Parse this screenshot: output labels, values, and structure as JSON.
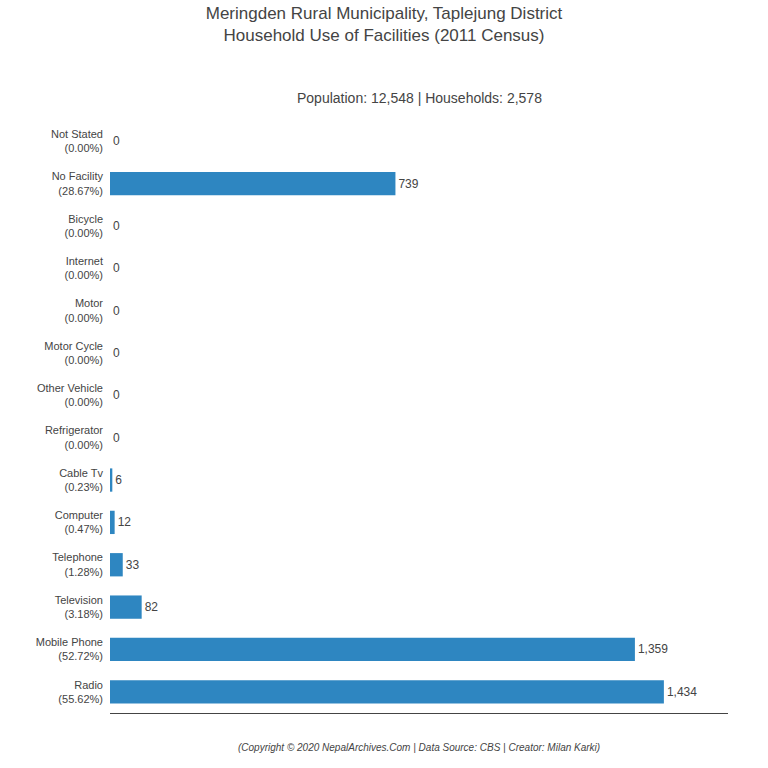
{
  "chart_data": {
    "type": "bar",
    "orientation": "horizontal",
    "title": "Meringden Rural Municipality, Taplejung District\nHousehold Use of Facilities (2011 Census)",
    "subtitle": "Population: 12,548 | Households: 2,578",
    "annotations": [
      "(Copyright © 2020 NepalArchives.Com | Data Source: CBS | Creator: Milan Karki)"
    ],
    "categories": [
      "Not Stated\n(0.00%)",
      "No Facility\n(28.67%)",
      "Bicycle\n(0.00%)",
      "Internet\n(0.00%)",
      "Motor\n(0.00%)",
      "Motor Cycle\n(0.00%)",
      "Other Vehicle\n(0.00%)",
      "Refrigerator\n(0.00%)",
      "Cable Tv\n(0.23%)",
      "Computer\n(0.47%)",
      "Telephone\n(1.28%)",
      "Television\n(3.18%)",
      "Mobile Phone\n(52.72%)",
      "Radio\n(55.62%)"
    ],
    "values": [
      0,
      739,
      0,
      0,
      0,
      0,
      0,
      0,
      6,
      12,
      33,
      82,
      1359,
      1434
    ],
    "value_labels": [
      "0",
      "739",
      "0",
      "0",
      "0",
      "0",
      "0",
      "0",
      "6",
      "12",
      "33",
      "82",
      "1,359",
      "1,434"
    ],
    "data_labels": true,
    "color": "#2e86c1",
    "xlim": [
      0,
      1600
    ],
    "tick_labels": "y",
    "grid": false
  }
}
